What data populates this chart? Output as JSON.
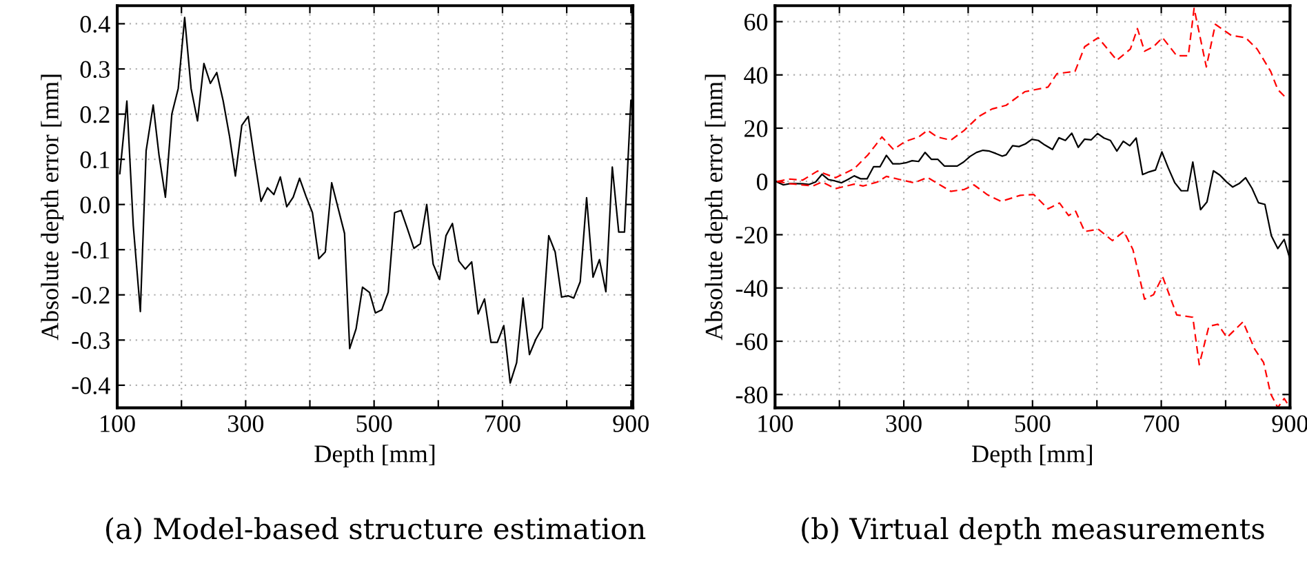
{
  "chart_data": [
    {
      "type": "line",
      "xlabel": "Depth [mm]",
      "ylabel": "Absolute depth error [mm]",
      "annotations": [
        "(a) Model-based structure estimation"
      ],
      "xlim": [
        100,
        903
      ],
      "ylim": [
        -0.45,
        0.44
      ],
      "xticks": [
        100,
        {
          "value": 200,
          "label": null
        },
        300,
        {
          "value": 400,
          "label": null
        },
        500,
        {
          "value": 600,
          "label": null
        },
        700,
        {
          "value": 800,
          "label": null
        },
        900
      ],
      "yticks": [
        -0.4,
        -0.3,
        -0.2,
        -0.1,
        {
          "value": 0,
          "label": "0.0"
        },
        0.1,
        0.2,
        0.3,
        0.4
      ],
      "grid": true,
      "line_style": "solid",
      "marker": "none",
      "series": [
        {
          "color": "#000000",
          "x": [
            104,
            115,
            125,
            136,
            145,
            156,
            165,
            175,
            185,
            195,
            205,
            215,
            225,
            235,
            245,
            255,
            265,
            275,
            284,
            294,
            304,
            314,
            324,
            334,
            344,
            354,
            364,
            374,
            384,
            394,
            404,
            414,
            424,
            434,
            444,
            454,
            462,
            472,
            482,
            493,
            502,
            512,
            522,
            532,
            542,
            552,
            562,
            572,
            582,
            592,
            602,
            612,
            622,
            632,
            642,
            652,
            662,
            672,
            682,
            692,
            702,
            712,
            722,
            732,
            742,
            752,
            762,
            772,
            782,
            792,
            802,
            811,
            821,
            831,
            841,
            851,
            861,
            871,
            881,
            890,
            900
          ],
          "values": [
            0.068,
            0.229,
            -0.047,
            -0.237,
            0.119,
            0.22,
            0.11,
            0.016,
            0.2,
            0.257,
            0.414,
            0.257,
            0.185,
            0.312,
            0.268,
            0.292,
            0.229,
            0.15,
            0.063,
            0.175,
            0.195,
            0.098,
            0.007,
            0.037,
            0.022,
            0.061,
            -0.005,
            0.016,
            0.058,
            0.018,
            -0.018,
            -0.12,
            -0.105,
            0.048,
            -0.008,
            -0.064,
            -0.319,
            -0.275,
            -0.183,
            -0.195,
            -0.24,
            -0.233,
            -0.194,
            -0.018,
            -0.013,
            -0.054,
            -0.097,
            -0.087,
            0.0,
            -0.132,
            -0.166,
            -0.069,
            -0.042,
            -0.125,
            -0.143,
            -0.127,
            -0.242,
            -0.209,
            -0.305,
            -0.305,
            -0.268,
            -0.395,
            -0.35,
            -0.207,
            -0.332,
            -0.298,
            -0.273,
            -0.069,
            -0.105,
            -0.205,
            -0.202,
            -0.207,
            -0.171,
            0.015,
            -0.161,
            -0.122,
            -0.193,
            0.083,
            -0.061,
            -0.061,
            0.231
          ]
        }
      ]
    },
    {
      "type": "line",
      "xlabel": "Depth [mm]",
      "ylabel": "Absolute depth error [mm]",
      "annotations": [
        "(b) Virtual depth measurements"
      ],
      "xlim": [
        100,
        900
      ],
      "ylim": [
        -85,
        66
      ],
      "xticks": [
        100,
        {
          "value": 200,
          "label": null
        },
        300,
        {
          "value": 400,
          "label": null
        },
        500,
        {
          "value": 600,
          "label": null
        },
        700,
        {
          "value": 800,
          "label": null
        },
        900
      ],
      "yticks": [
        -80,
        -60,
        -40,
        -20,
        0,
        20,
        40,
        60
      ],
      "grid": true,
      "marker": "none",
      "series": [
        {
          "color": "#000000",
          "line_style": "solid",
          "x": [
            103,
            113,
            123,
            133,
            143,
            153,
            163,
            173,
            183,
            193,
            203,
            213,
            223,
            233,
            243,
            253,
            263,
            273,
            283,
            293,
            303,
            313,
            323,
            333,
            343,
            353,
            363,
            373,
            383,
            393,
            403,
            413,
            423,
            433,
            443,
            453,
            459,
            469,
            479,
            489,
            499,
            509,
            519,
            531,
            541,
            551,
            561,
            571,
            581,
            591,
            601,
            611,
            621,
            631,
            641,
            651,
            661,
            671,
            681,
            691,
            701,
            711,
            721,
            731,
            741,
            749,
            761,
            771,
            781,
            791,
            801,
            811,
            821,
            831,
            841,
            851,
            861,
            871,
            881,
            891,
            900
          ],
          "values": [
            -0.2,
            -1.3,
            -0.8,
            -0.8,
            -0.9,
            -1.1,
            -0.2,
            2.7,
            0.7,
            0.2,
            -0.5,
            0.7,
            2.1,
            1.0,
            1.0,
            5.5,
            5.5,
            9.8,
            6.6,
            6.6,
            7.0,
            7.8,
            7.5,
            10.9,
            8.3,
            8.3,
            5.8,
            5.8,
            5.8,
            7.3,
            9.4,
            10.9,
            11.7,
            11.4,
            10.5,
            9.5,
            10.0,
            13.4,
            13.1,
            14.1,
            15.8,
            15.4,
            13.7,
            12.0,
            16.4,
            15.4,
            18.1,
            12.8,
            15.9,
            15.6,
            18.0,
            16.3,
            15.4,
            11.4,
            15.1,
            13.4,
            16.3,
            2.6,
            3.6,
            4.3,
            11.1,
            5.0,
            -0.5,
            -3.5,
            -3.5,
            7.3,
            -10.6,
            -7.7,
            4.0,
            2.4,
            -0.1,
            -2.1,
            -0.8,
            1.4,
            -2.6,
            -8.0,
            -8.6,
            -20.4,
            -25.2,
            -21.8,
            -29.2
          ]
        },
        {
          "color": "#ff0000",
          "line_style": "dashed",
          "x": [
            103,
            123,
            143,
            166,
            194,
            223,
            244,
            266,
            284,
            302,
            323,
            337,
            352,
            373,
            394,
            416,
            437,
            459,
            488,
            524,
            538,
            566,
            581,
            602,
            631,
            652,
            663,
            674,
            688,
            702,
            724,
            742,
            751,
            770,
            784,
            809,
            831,
            849,
            870,
            881,
            895
          ],
          "values": [
            0.0,
            0.9,
            0.5,
            3.9,
            1.4,
            4.8,
            9.9,
            16.7,
            12.0,
            15.0,
            16.7,
            19.2,
            16.7,
            15.5,
            19.2,
            24.3,
            27.2,
            28.6,
            33.7,
            35.4,
            40.5,
            41.3,
            50.6,
            54.0,
            45.5,
            49.7,
            57.4,
            48.9,
            50.6,
            54.0,
            47.2,
            47.2,
            65.0,
            43.0,
            59.0,
            54.8,
            54.0,
            49.7,
            41.3,
            34.5,
            31.1
          ]
        },
        {
          "color": "#ff0000",
          "line_style": "dashed",
          "x": [
            103,
            123,
            159,
            173,
            194,
            223,
            237,
            259,
            273,
            294,
            316,
            337,
            359,
            373,
            394,
            409,
            430,
            451,
            459,
            481,
            502,
            524,
            542,
            556,
            567,
            581,
            602,
            624,
            642,
            656,
            674,
            688,
            702,
            724,
            749,
            759,
            774,
            788,
            802,
            827,
            845,
            859,
            870,
            881,
            891,
            900
          ],
          "values": [
            0.0,
            -0.8,
            -1.7,
            -0.2,
            -2.7,
            -1.0,
            -1.7,
            -0.2,
            1.9,
            0.7,
            -0.5,
            1.5,
            -1.7,
            -3.7,
            -3.0,
            -1.3,
            -5.0,
            -7.5,
            -6.9,
            -5.2,
            -4.9,
            -10.3,
            -8.1,
            -12.8,
            -11.2,
            -18.8,
            -17.9,
            -22.2,
            -18.8,
            -25.6,
            -44.2,
            -42.5,
            -35.7,
            -50.1,
            -51.0,
            -68.8,
            -54.4,
            -53.6,
            -58.6,
            -52.7,
            -62.9,
            -68.0,
            -79.8,
            -84.9,
            -81.5,
            -84.9
          ]
        }
      ]
    }
  ]
}
